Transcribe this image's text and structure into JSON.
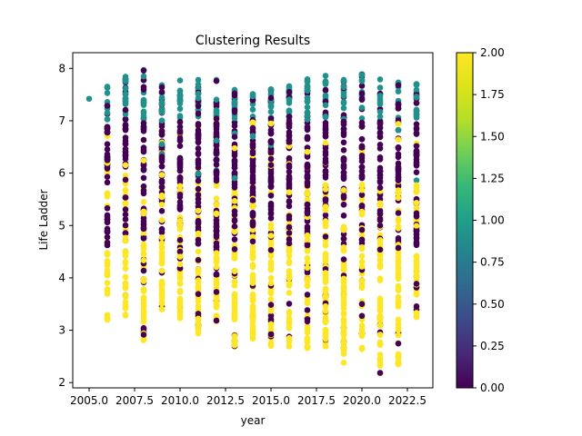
{
  "chart_data": {
    "type": "scatter",
    "title": "Clustering Results",
    "xlabel": "year",
    "ylabel": "Life Ladder",
    "xlim": [
      2004.1,
      2023.9
    ],
    "ylim": [
      1.9,
      8.3
    ],
    "xticks": [
      "2005.0",
      "2007.5",
      "2010.0",
      "2012.5",
      "2015.0",
      "2017.5",
      "2020.0",
      "2022.5"
    ],
    "yticks": [
      "2",
      "3",
      "4",
      "5",
      "6",
      "7",
      "8"
    ],
    "grid": false,
    "colorbar": {
      "colormap": "viridis",
      "range": [
        0,
        2
      ],
      "ticks": [
        "0.00",
        "0.25",
        "0.50",
        "0.75",
        "1.00",
        "1.25",
        "1.50",
        "1.75",
        "2.00"
      ]
    },
    "clusters": [
      {
        "value": 0,
        "color": "#440154"
      },
      {
        "value": 1,
        "color": "#21918c"
      },
      {
        "value": 2,
        "color": "#fde725"
      }
    ],
    "years": [
      {
        "year": 2005,
        "min": 7.42,
        "max": 7.42,
        "count": 1
      },
      {
        "year": 2006,
        "min": 3.2,
        "max": 7.65,
        "count": 85
      },
      {
        "year": 2007,
        "min": 3.28,
        "max": 7.84,
        "count": 100
      },
      {
        "year": 2008,
        "min": 2.81,
        "max": 7.97,
        "count": 105
      },
      {
        "year": 2009,
        "min": 3.4,
        "max": 7.68,
        "count": 110
      },
      {
        "year": 2010,
        "min": 3.23,
        "max": 7.77,
        "count": 115
      },
      {
        "year": 2011,
        "min": 2.94,
        "max": 7.78,
        "count": 135
      },
      {
        "year": 2012,
        "min": 3.17,
        "max": 7.78,
        "count": 130
      },
      {
        "year": 2013,
        "min": 2.69,
        "max": 7.59,
        "count": 130
      },
      {
        "year": 2014,
        "min": 2.84,
        "max": 7.51,
        "count": 135
      },
      {
        "year": 2015,
        "min": 2.7,
        "max": 7.6,
        "count": 135
      },
      {
        "year": 2016,
        "min": 2.69,
        "max": 7.66,
        "count": 135
      },
      {
        "year": 2017,
        "min": 2.66,
        "max": 7.79,
        "count": 135
      },
      {
        "year": 2018,
        "min": 2.69,
        "max": 7.86,
        "count": 130
      },
      {
        "year": 2019,
        "min": 2.38,
        "max": 7.78,
        "count": 135
      },
      {
        "year": 2020,
        "min": 2.64,
        "max": 7.89,
        "count": 95
      },
      {
        "year": 2021,
        "min": 2.18,
        "max": 7.79,
        "count": 110
      },
      {
        "year": 2022,
        "min": 2.35,
        "max": 7.73,
        "count": 110
      },
      {
        "year": 2023,
        "min": 3.25,
        "max": 7.7,
        "count": 120
      }
    ]
  }
}
